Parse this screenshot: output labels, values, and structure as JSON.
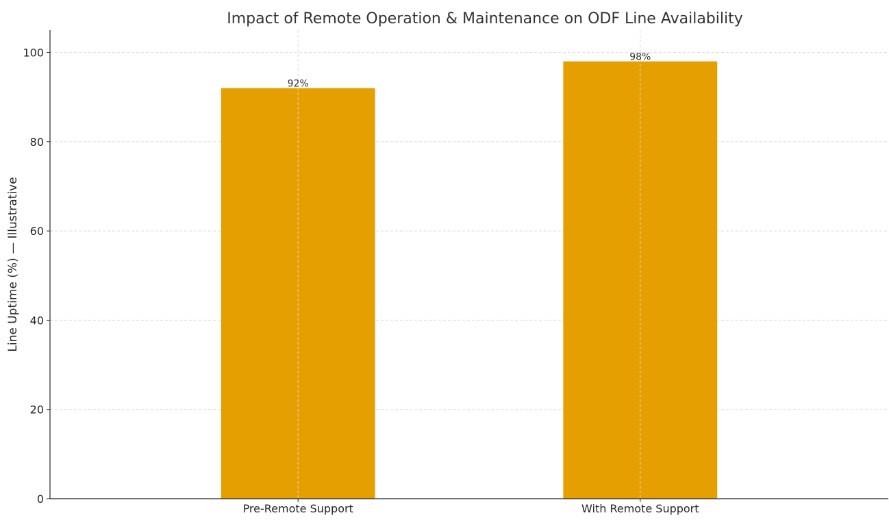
{
  "chart_data": {
    "type": "bar",
    "title": "Impact of Remote Operation & Maintenance on ODF Line Availability",
    "xlabel": "",
    "ylabel": "Line Uptime (%) — Illustrative",
    "categories": [
      "Pre-Remote Support",
      "With Remote Support"
    ],
    "values": [
      92,
      98
    ],
    "data_labels": [
      "92%",
      "98%"
    ],
    "ylim": [
      0,
      105
    ],
    "yticks": [
      0,
      20,
      40,
      60,
      80,
      100
    ],
    "ytick_labels": [
      "0",
      "20",
      "40",
      "60",
      "80",
      "100"
    ],
    "grid": true,
    "bar_color": "#E69F00"
  }
}
